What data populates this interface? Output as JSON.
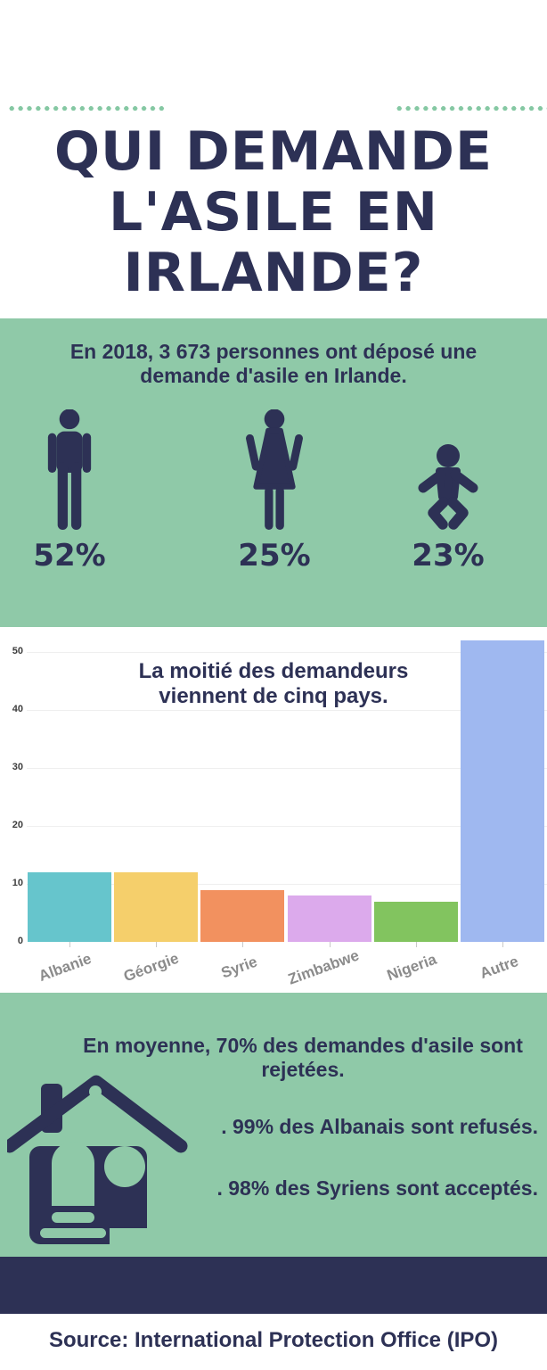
{
  "palette": {
    "navy": "#2d3155",
    "green": "#8fc9a8",
    "dot_green": "#85c8a3",
    "label_gray": "#8b8b8b"
  },
  "header": {
    "title": "QUI DEMANDE\nL'ASILE EN\nIRLANDE?"
  },
  "stats": {
    "intro": "En 2018, 3 673 personnes ont déposé une demande d'asile en Irlande.",
    "groups": [
      {
        "icon": "man-icon",
        "value": "52%"
      },
      {
        "icon": "woman-icon",
        "value": "25%"
      },
      {
        "icon": "baby-icon",
        "value": "23%"
      }
    ]
  },
  "chart_data": {
    "type": "bar",
    "title": "La moitié des demandeurs\nviennent de cinq pays.",
    "categories": [
      "Albanie",
      "Géorgie",
      "Syrie",
      "Zimbabwe",
      "Nigeria",
      "Autre"
    ],
    "values": [
      12,
      12,
      9,
      8,
      7,
      52
    ],
    "colors": [
      "#66c5cc",
      "#f5cf6b",
      "#f2915f",
      "#dcaaec",
      "#82c45f",
      "#9fb8f0"
    ],
    "yticks": [
      0,
      10,
      20,
      30,
      40,
      50
    ],
    "ylim": [
      0,
      54
    ],
    "xlabel": "",
    "ylabel": "",
    "grid": true,
    "legend": "none"
  },
  "outcomes": {
    "heading": "En moyenne, 70% des demandes d'asile sont rejetées.",
    "bullets": [
      ". 99% des Albanais sont refusés.",
      ". 98% des Syriens sont acceptés."
    ]
  },
  "footer": {
    "source": "Source: International Protection Office (IPO)"
  }
}
